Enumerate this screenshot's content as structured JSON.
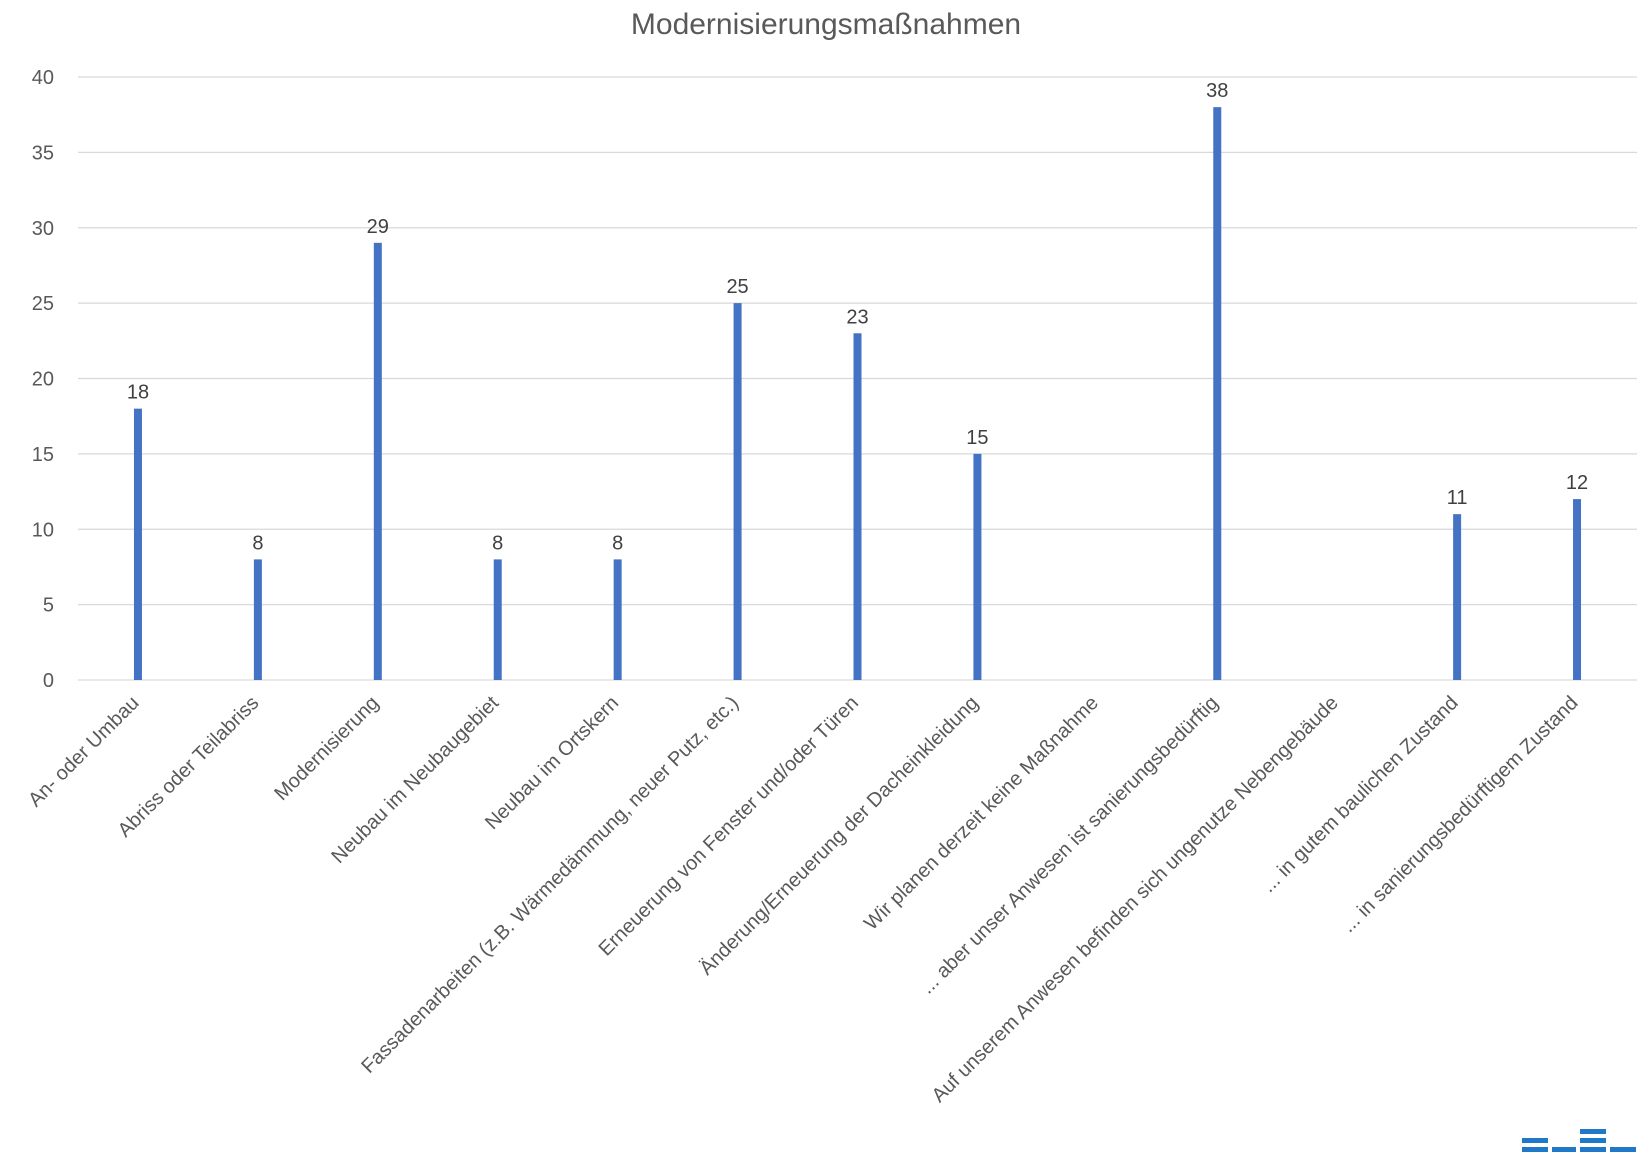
{
  "chart_data": {
    "type": "bar",
    "title": "Modernisierungsmaßnahmen",
    "xlabel": "",
    "ylabel": "",
    "ylim": [
      0,
      40
    ],
    "yticks": [
      0,
      5,
      10,
      15,
      20,
      25,
      30,
      35,
      40
    ],
    "grid": true,
    "legend": "none",
    "bar_color": "#4472c4",
    "categories": [
      "An- oder Umbau",
      "Abriss oder Teilabriss",
      "Modernisierung",
      "Neubau im Neubaugebiet",
      "Neubau im Ortskern",
      "Fassadenarbeiten (z.B. Wärmedämmung, neuer Putz, etc.)",
      "Erneuerung von Fenster und/oder Türen",
      "Änderung/Erneuerung der Dacheinkleidung",
      "Wir planen derzeit keine Maßnahme",
      "... aber unser Anwesen ist sanierungsbedürftig",
      "Auf unserem Anwesen befinden sich ungenutze Nebengebäude",
      "... in gutem baulichen Zustand",
      "... in sanierungsbedürftigem Zustand"
    ],
    "values": [
      18,
      8,
      29,
      8,
      8,
      25,
      23,
      15,
      null,
      38,
      null,
      11,
      12
    ],
    "data_labels": [
      "18",
      "8",
      "29",
      "8",
      "8",
      "25",
      "23",
      "15",
      "",
      "38",
      "",
      "11",
      "12"
    ]
  },
  "logo_icon": "bar-logo-icon"
}
